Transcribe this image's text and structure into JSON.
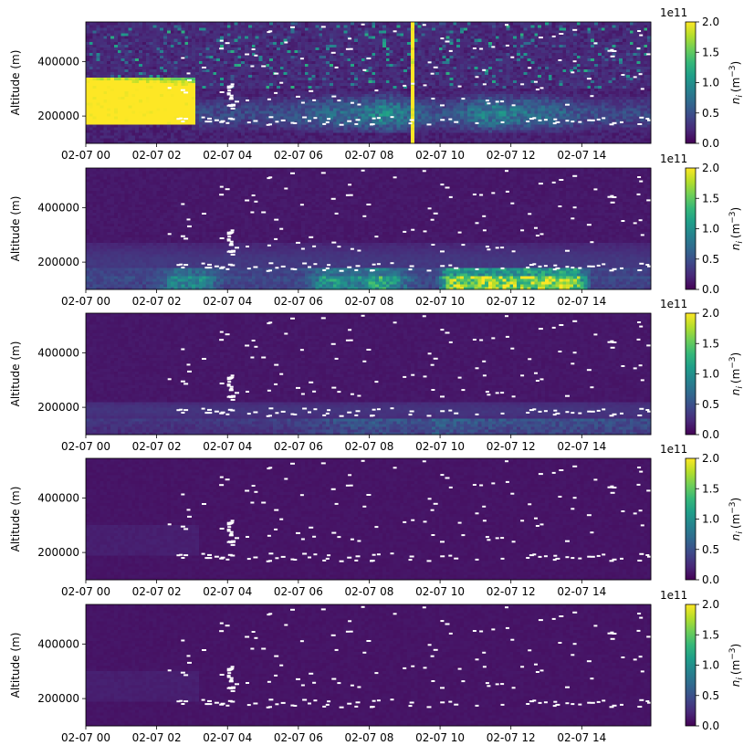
{
  "colormap": {
    "name": "viridis",
    "stops": [
      "#440154",
      "#482878",
      "#3e4989",
      "#31688e",
      "#26828e",
      "#1f9e89",
      "#35b779",
      "#6ece58",
      "#b5de2b",
      "#fde725"
    ],
    "missing_color": "#ffffff"
  },
  "chart_data": [
    {
      "type": "heatmap",
      "panel": 1,
      "ylabel": "Altitude (m)",
      "x_ticks": [
        "02-07 00",
        "02-07 02",
        "02-07 04",
        "02-07 06",
        "02-07 08",
        "02-07 10",
        "02-07 12",
        "02-07 14"
      ],
      "x_range_hours": [
        0,
        15.95
      ],
      "y_ticks": [
        "200000",
        "400000"
      ],
      "y_range": [
        100000,
        545000
      ],
      "colorbar": {
        "label": "n_i (m⁻³)",
        "label_base": "n",
        "label_sub": "i",
        "label_unit": "(m",
        "label_exp": "−3",
        "label_close": ")",
        "offset": "1e11",
        "ticks": [
          "0.0",
          "0.5",
          "1.0",
          "1.5",
          "2.0"
        ],
        "range": [
          0,
          200000000000.0
        ]
      },
      "features": [
        "intense layer 0-3 h at 180000-330000 m",
        "patchy enhancement 3-15 h at 150000-300000 m",
        "speckled high values above 300000 m",
        "vertical streak near 09:12"
      ]
    },
    {
      "type": "heatmap",
      "panel": 2,
      "ylabel": "Altitude (m)",
      "x_ticks": [
        "02-07 00",
        "02-07 02",
        "02-07 04",
        "02-07 06",
        "02-07 08",
        "02-07 10",
        "02-07 12",
        "02-07 14"
      ],
      "x_range_hours": [
        0,
        15.95
      ],
      "y_ticks": [
        "200000",
        "400000"
      ],
      "y_range": [
        100000,
        545000
      ],
      "colorbar": {
        "label": "n_i (m⁻³)",
        "label_base": "n",
        "label_sub": "i",
        "label_unit": "(m",
        "label_exp": "−3",
        "label_close": ")",
        "offset": "1e11",
        "ticks": [
          "0.0",
          "0.5",
          "1.0",
          "1.5",
          "2.0"
        ],
        "range": [
          0,
          200000000000.0
        ]
      },
      "features": [
        "bottom layer 100000-180000 m with peak 10-14 h"
      ]
    },
    {
      "type": "heatmap",
      "panel": 3,
      "ylabel": "Altitude (m)",
      "x_ticks": [
        "02-07 00",
        "02-07 02",
        "02-07 04",
        "02-07 06",
        "02-07 08",
        "02-07 10",
        "02-07 12",
        "02-07 14"
      ],
      "x_range_hours": [
        0,
        15.95
      ],
      "y_ticks": [
        "200000",
        "400000"
      ],
      "y_range": [
        100000,
        545000
      ],
      "colorbar": {
        "label": "n_i (m⁻³)",
        "label_base": "n",
        "label_sub": "i",
        "label_unit": "(m",
        "label_exp": "−3",
        "label_close": ")",
        "offset": "1e11",
        "ticks": [
          "0.0",
          "0.5",
          "1.0",
          "1.5",
          "2.0"
        ],
        "range": [
          0,
          200000000000.0
        ]
      },
      "features": [
        "faint bottom layer 100000-220000 m"
      ]
    },
    {
      "type": "heatmap",
      "panel": 4,
      "ylabel": "Altitude (m)",
      "x_ticks": [
        "02-07 00",
        "02-07 02",
        "02-07 04",
        "02-07 06",
        "02-07 08",
        "02-07 10",
        "02-07 12",
        "02-07 14"
      ],
      "x_range_hours": [
        0,
        15.95
      ],
      "y_ticks": [
        "200000",
        "400000"
      ],
      "y_range": [
        100000,
        545000
      ],
      "colorbar": {
        "label": "n_i (m⁻³)",
        "label_base": "n",
        "label_sub": "i",
        "label_unit": "(m",
        "label_exp": "−3",
        "label_close": ")",
        "offset": "1e11",
        "ticks": [
          "0.0",
          "0.5",
          "1.0",
          "1.5",
          "2.0"
        ],
        "range": [
          0,
          200000000000.0
        ]
      },
      "features": [
        "near-uniform low values"
      ]
    },
    {
      "type": "heatmap",
      "panel": 5,
      "ylabel": "Altitude (m)",
      "x_ticks": [
        "02-07 00",
        "02-07 02",
        "02-07 04",
        "02-07 06",
        "02-07 08",
        "02-07 10",
        "02-07 12",
        "02-07 14"
      ],
      "x_range_hours": [
        0,
        15.95
      ],
      "y_ticks": [
        "200000",
        "400000"
      ],
      "y_range": [
        100000,
        545000
      ],
      "colorbar": {
        "label": "n_i (m⁻³)",
        "label_base": "n",
        "label_sub": "i",
        "label_unit": "(m",
        "label_exp": "−3",
        "label_close": ")",
        "offset": "1e11",
        "ticks": [
          "0.0",
          "0.5",
          "1.0",
          "1.5",
          "2.0"
        ],
        "range": [
          0,
          200000000000.0
        ]
      },
      "features": [
        "near-uniform low values"
      ]
    }
  ]
}
